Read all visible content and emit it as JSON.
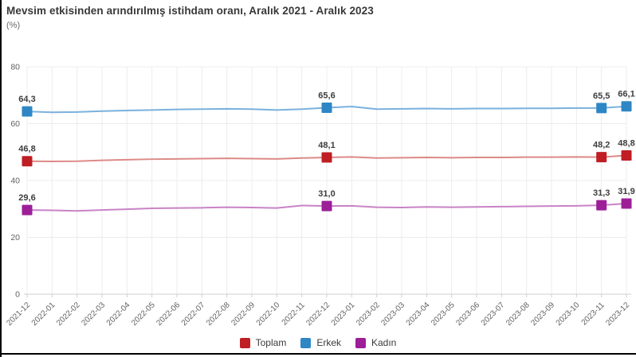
{
  "header": {
    "title": "Mevsim etkisinden arındırılmış istihdam oranı, Aralık 2021 - Aralık 2023",
    "subtitle": "(%)"
  },
  "chart_data": {
    "type": "line",
    "title": "Mevsim etkisinden arındırılmış istihdam oranı, Aralık 2021 - Aralık 2023",
    "unit": "%",
    "x": [
      "2021-12",
      "2022-01",
      "2022-02",
      "2022-03",
      "2022-04",
      "2022-05",
      "2022-06",
      "2022-07",
      "2022-08",
      "2022-09",
      "2022-10",
      "2022-11",
      "2022-12",
      "2023-01",
      "2023-02",
      "2023-03",
      "2023-04",
      "2023-05",
      "2023-06",
      "2023-07",
      "2023-08",
      "2023-09",
      "2023-10",
      "2023-11",
      "2023-12"
    ],
    "ylim": [
      0,
      80
    ],
    "yticks": [
      0,
      20,
      40,
      60,
      80
    ],
    "grid": true,
    "legend_position": "bottom-center",
    "series": [
      {
        "id": "toplam",
        "name": "Toplam",
        "marker_color": "#bf1e24",
        "line_color": "#dd8a86",
        "values": [
          46.8,
          46.7,
          46.8,
          47.1,
          47.3,
          47.5,
          47.6,
          47.7,
          47.8,
          47.7,
          47.6,
          47.9,
          48.1,
          48.3,
          47.9,
          48.0,
          48.1,
          48.0,
          48.1,
          48.1,
          48.2,
          48.2,
          48.3,
          48.2,
          48.8
        ],
        "point_labels": [
          "46,8",
          null,
          null,
          null,
          null,
          null,
          null,
          null,
          null,
          null,
          null,
          null,
          "48,1",
          null,
          null,
          null,
          null,
          null,
          null,
          null,
          null,
          null,
          null,
          "48,2",
          "48,8"
        ]
      },
      {
        "id": "erkek",
        "name": "Erkek",
        "marker_color": "#2e86c5",
        "line_color": "#7ab1dd",
        "values": [
          64.3,
          64.0,
          64.1,
          64.4,
          64.6,
          64.8,
          65.0,
          65.1,
          65.2,
          65.1,
          64.8,
          65.1,
          65.6,
          66.0,
          65.1,
          65.2,
          65.3,
          65.2,
          65.3,
          65.3,
          65.4,
          65.4,
          65.5,
          65.5,
          66.1
        ],
        "point_labels": [
          "64,3",
          null,
          null,
          null,
          null,
          null,
          null,
          null,
          null,
          null,
          null,
          null,
          "65,6",
          null,
          null,
          null,
          null,
          null,
          null,
          null,
          null,
          null,
          null,
          "65,5",
          "66,1"
        ]
      },
      {
        "id": "kadin",
        "name": "Kadın",
        "marker_color": "#9c1f98",
        "line_color": "#c983c6",
        "values": [
          29.6,
          29.5,
          29.3,
          29.6,
          29.9,
          30.2,
          30.3,
          30.4,
          30.6,
          30.5,
          30.3,
          31.2,
          31.0,
          31.1,
          30.6,
          30.5,
          30.7,
          30.6,
          30.7,
          30.8,
          30.9,
          31.0,
          31.1,
          31.3,
          31.9
        ],
        "point_labels": [
          "29,6",
          null,
          null,
          null,
          null,
          null,
          null,
          null,
          null,
          null,
          null,
          null,
          "31,0",
          null,
          null,
          null,
          null,
          null,
          null,
          null,
          null,
          null,
          null,
          "31,3",
          "31,9"
        ]
      }
    ]
  },
  "legend": {
    "items": [
      {
        "id": "toplam",
        "label": "Toplam",
        "color": "#bf1e24"
      },
      {
        "id": "erkek",
        "label": "Erkek",
        "color": "#2e86c5"
      },
      {
        "id": "kadin",
        "label": "Kadın",
        "color": "#9c1f98"
      }
    ]
  }
}
